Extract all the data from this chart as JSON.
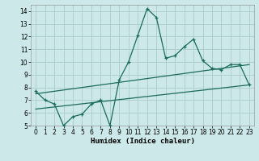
{
  "title": "",
  "xlabel": "Humidex (Indice chaleur)",
  "bg_color": "#cce8e8",
  "grid_color": "#aacccc",
  "line_color": "#1a6b5a",
  "xlim": [
    -0.5,
    23.5
  ],
  "ylim": [
    5,
    14.5
  ],
  "xticks": [
    0,
    1,
    2,
    3,
    4,
    5,
    6,
    7,
    8,
    9,
    10,
    11,
    12,
    13,
    14,
    15,
    16,
    17,
    18,
    19,
    20,
    21,
    22,
    23
  ],
  "yticks": [
    5,
    6,
    7,
    8,
    9,
    10,
    11,
    12,
    13,
    14
  ],
  "line1_x": [
    0,
    1,
    2,
    3,
    4,
    5,
    6,
    7,
    8,
    9,
    10,
    11,
    12,
    13,
    14,
    15,
    16,
    17,
    18,
    19,
    20,
    21,
    22,
    23
  ],
  "line1_y": [
    7.7,
    7.0,
    6.7,
    5.0,
    5.7,
    5.9,
    6.7,
    7.0,
    5.0,
    8.6,
    10.0,
    12.1,
    14.2,
    13.5,
    10.3,
    10.5,
    11.2,
    11.8,
    10.1,
    9.5,
    9.4,
    9.8,
    9.8,
    8.2
  ],
  "line2_x": [
    0,
    23
  ],
  "line2_y": [
    7.5,
    9.8
  ],
  "line3_x": [
    0,
    23
  ],
  "line3_y": [
    6.3,
    8.2
  ],
  "tick_fontsize": 5.5,
  "xlabel_fontsize": 6.5
}
